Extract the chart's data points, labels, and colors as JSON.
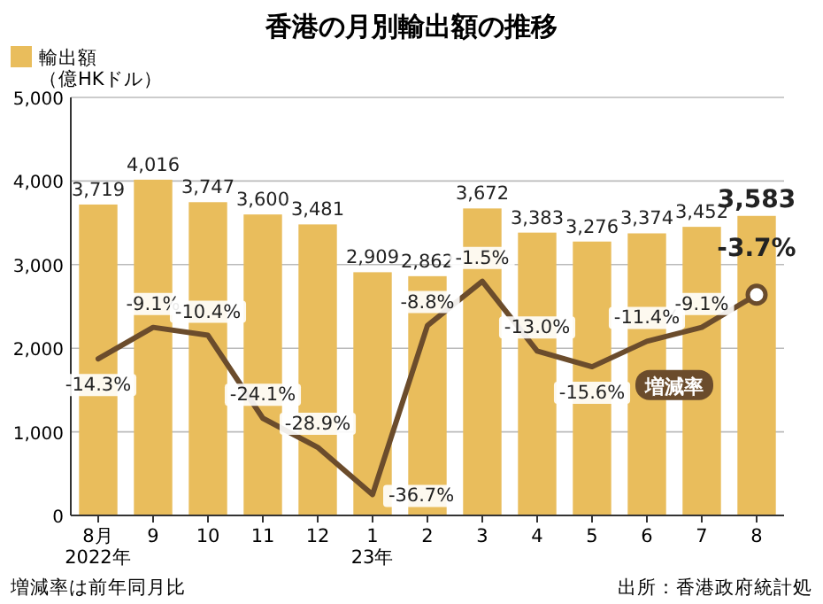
{
  "chart_data": {
    "type": "bar",
    "title": "香港の月別輸出額の推移",
    "categories": [
      "8月\n2022年",
      "9",
      "10",
      "11",
      "12",
      "1\n23年",
      "2",
      "3",
      "4",
      "5",
      "6",
      "7",
      "8"
    ],
    "series": [
      {
        "name": "輸出額（億HKドル）",
        "color": "#e9bd5c",
        "values": [
          3719,
          4016,
          3747,
          3600,
          3481,
          2909,
          2862,
          3672,
          3383,
          3276,
          3374,
          3452,
          3583
        ],
        "value_labels": [
          "3,719",
          "4,016",
          "3,747",
          "3,600",
          "3,481",
          "2,909",
          "2,862",
          "3,672",
          "3,383",
          "3,276",
          "3,374",
          "3,452",
          "3,583"
        ]
      },
      {
        "name": "増減率",
        "type": "line",
        "axis": "y2",
        "color": "#6b4c2c",
        "values": [
          -14.3,
          -9.1,
          -10.4,
          -24.1,
          -28.9,
          -36.7,
          -8.8,
          -1.5,
          -13.0,
          -15.6,
          -11.4,
          -9.1,
          -3.7
        ],
        "value_labels": [
          "-14.3%",
          "-9.1%",
          "-10.4%",
          "-24.1%",
          "-28.9%",
          "-36.7%",
          "-8.8%",
          "-1.5%",
          "-13.0%",
          "-15.6%",
          "-11.4%",
          "-9.1%",
          "-3.7%"
        ]
      }
    ],
    "ylim": [
      0,
      5000
    ],
    "yticks": [
      {
        "value": 0,
        "label": "0"
      },
      {
        "value": 1000,
        "label": "1,000"
      },
      {
        "value": 2000,
        "label": "2,000"
      },
      {
        "value": 3000,
        "label": "3,000"
      },
      {
        "value": 4000,
        "label": "4,000"
      },
      {
        "value": 5000,
        "label": "5,000"
      }
    ],
    "grid": "y",
    "legend": "top left",
    "tick_labels": [
      "x",
      "y"
    ],
    "annotations": [
      "増減率は前年同月比",
      "出所：香港政府統計処"
    ]
  }
}
